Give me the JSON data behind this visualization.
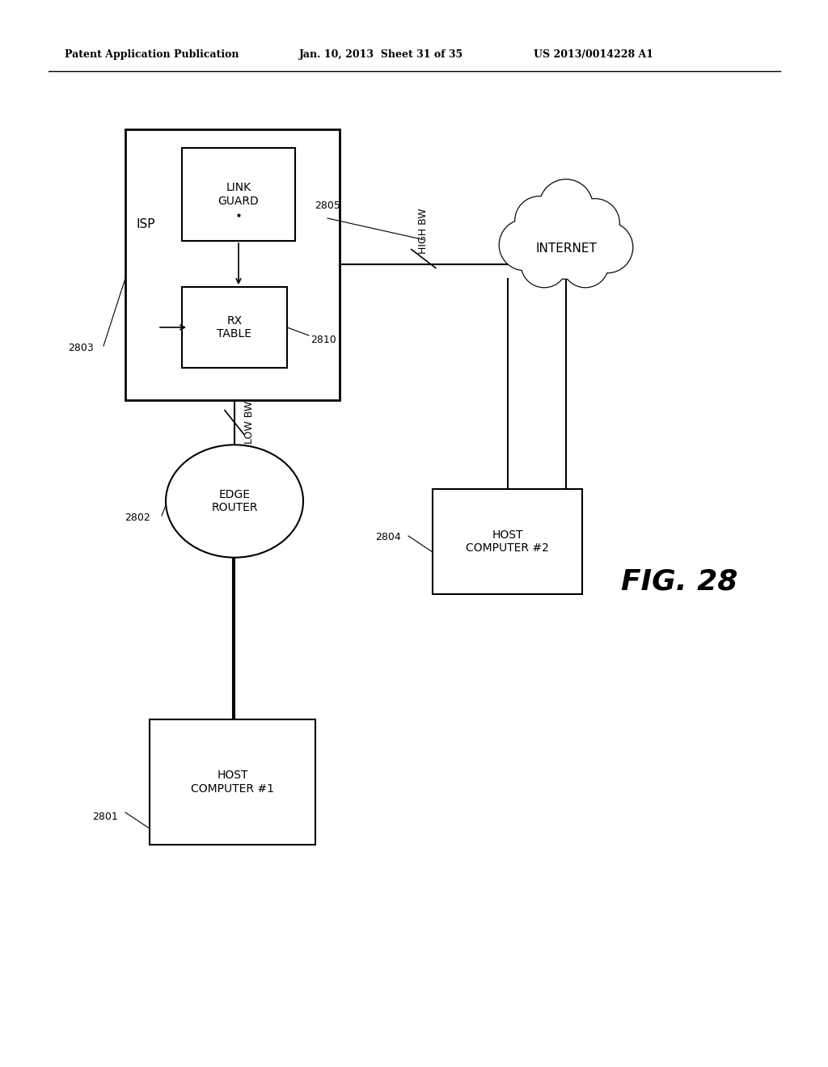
{
  "header_left": "Patent Application Publication",
  "header_mid": "Jan. 10, 2013  Sheet 31 of 35",
  "header_right": "US 2013/0014228 A1",
  "fig_label": "FIG. 28",
  "bg_color": "#ffffff",
  "line_color": "#000000"
}
